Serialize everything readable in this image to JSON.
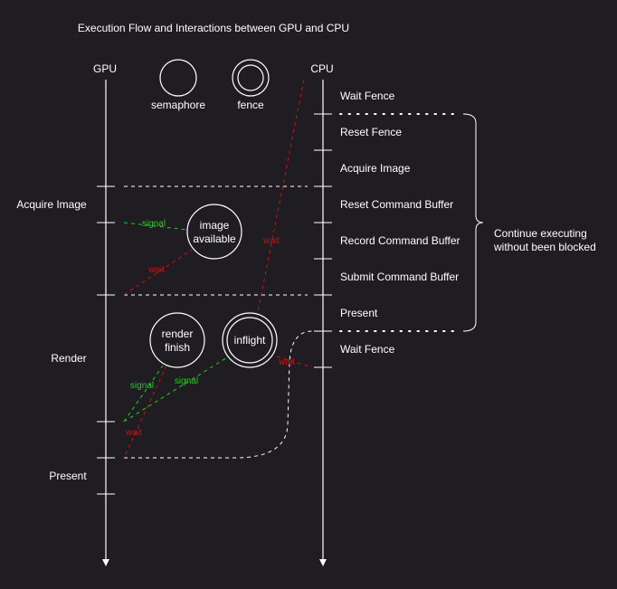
{
  "title": "Execution Flow and Interactions between GPU and CPU",
  "columns": {
    "gpu": "GPU",
    "cpu": "CPU"
  },
  "legend": {
    "semaphore": "semaphore",
    "fence": "fence"
  },
  "gpu_stages": [
    "Acquire Image",
    "Render",
    "Present"
  ],
  "cpu_steps": [
    "Wait Fence",
    "Reset Fence",
    "Acquire Image",
    "Reset Command Buffer",
    "Record Command Buffer",
    "Submit Command Buffer",
    "Present",
    "Wait Fence"
  ],
  "brace_note": [
    "Continue executing",
    "without been blocked"
  ],
  "objects": {
    "image_available": [
      "image",
      "available"
    ],
    "render_finish": [
      "render",
      "finish"
    ],
    "inflight": "inflight"
  },
  "edge_labels": {
    "signal": "signal",
    "wait": "wait"
  },
  "colors": {
    "background": "#1f1d22",
    "line": "#ffffff",
    "signal": "#22cc22",
    "wait": "#cc1111"
  }
}
